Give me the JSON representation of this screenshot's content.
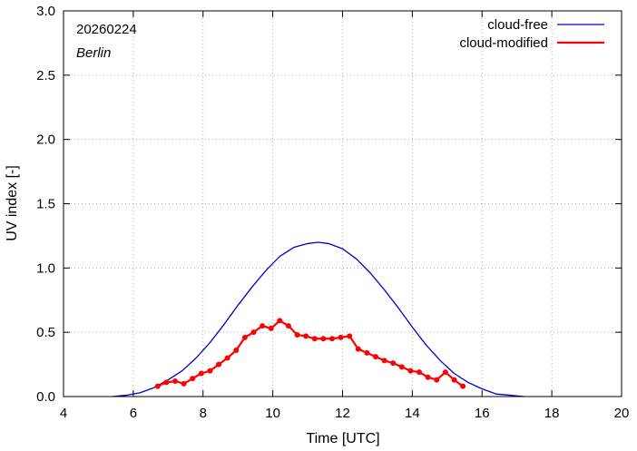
{
  "chart_data": {
    "type": "line",
    "date_label": "20260224",
    "location_label": "Berlin",
    "xlabel": "Time  [UTC]",
    "ylabel": "UV index  [-]",
    "xlim": [
      4,
      20
    ],
    "ylim": [
      0,
      3.0
    ],
    "x_ticks": [
      4,
      6,
      8,
      10,
      12,
      14,
      16,
      18,
      20
    ],
    "y_ticks": [
      0.0,
      0.5,
      1.0,
      1.5,
      2.0,
      2.5,
      3.0
    ],
    "x_tick_labels": [
      "4",
      "6",
      "8",
      "10",
      "12",
      "14",
      "16",
      "18",
      "20"
    ],
    "y_tick_labels": [
      "0.0",
      "0.5",
      "1.0",
      "1.5",
      "2.0",
      "2.5",
      "3.0"
    ],
    "grid": true,
    "legend_position": "top-right",
    "series": [
      {
        "name": "cloud-free",
        "color": "#0000cc",
        "markers": false,
        "x": [
          5.4,
          5.8,
          6.2,
          6.6,
          7.0,
          7.4,
          7.8,
          8.2,
          8.6,
          9.0,
          9.4,
          9.8,
          10.2,
          10.6,
          11.0,
          11.3,
          11.6,
          12.0,
          12.4,
          12.8,
          13.2,
          13.6,
          14.0,
          14.4,
          14.8,
          15.2,
          15.6,
          16.0,
          16.4,
          16.8,
          17.2
        ],
        "values": [
          0.0,
          0.01,
          0.03,
          0.07,
          0.13,
          0.2,
          0.3,
          0.42,
          0.56,
          0.71,
          0.85,
          0.98,
          1.09,
          1.16,
          1.19,
          1.2,
          1.19,
          1.15,
          1.07,
          0.96,
          0.83,
          0.69,
          0.54,
          0.4,
          0.28,
          0.18,
          0.11,
          0.06,
          0.02,
          0.01,
          0.0
        ]
      },
      {
        "name": "cloud-modified",
        "color": "#ff0000",
        "markers": true,
        "x": [
          6.7,
          6.95,
          7.2,
          7.45,
          7.7,
          7.95,
          8.2,
          8.45,
          8.7,
          8.95,
          9.2,
          9.45,
          9.7,
          9.95,
          10.2,
          10.45,
          10.7,
          10.95,
          11.2,
          11.45,
          11.7,
          11.95,
          12.2,
          12.45,
          12.7,
          12.95,
          13.2,
          13.45,
          13.7,
          13.95,
          14.2,
          14.45,
          14.7,
          14.95,
          15.2,
          15.45
        ],
        "values": [
          0.08,
          0.11,
          0.12,
          0.1,
          0.14,
          0.18,
          0.2,
          0.25,
          0.3,
          0.36,
          0.46,
          0.5,
          0.55,
          0.53,
          0.59,
          0.55,
          0.48,
          0.47,
          0.45,
          0.45,
          0.45,
          0.46,
          0.47,
          0.37,
          0.34,
          0.31,
          0.28,
          0.26,
          0.23,
          0.2,
          0.19,
          0.15,
          0.13,
          0.19,
          0.13,
          0.08
        ]
      }
    ]
  }
}
